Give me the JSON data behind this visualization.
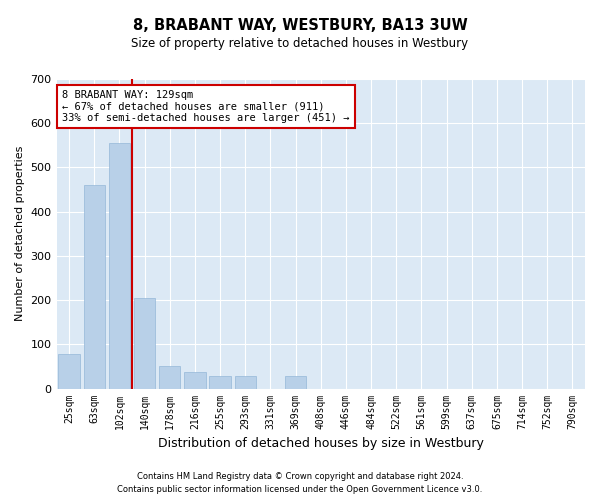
{
  "title": "8, BRABANT WAY, WESTBURY, BA13 3UW",
  "subtitle": "Size of property relative to detached houses in Westbury",
  "xlabel": "Distribution of detached houses by size in Westbury",
  "ylabel": "Number of detached properties",
  "categories": [
    "25sqm",
    "63sqm",
    "102sqm",
    "140sqm",
    "178sqm",
    "216sqm",
    "255sqm",
    "293sqm",
    "331sqm",
    "369sqm",
    "408sqm",
    "446sqm",
    "484sqm",
    "522sqm",
    "561sqm",
    "599sqm",
    "637sqm",
    "675sqm",
    "714sqm",
    "752sqm",
    "790sqm"
  ],
  "values": [
    78,
    460,
    555,
    205,
    50,
    38,
    28,
    28,
    0,
    28,
    0,
    0,
    0,
    0,
    0,
    0,
    0,
    0,
    0,
    0,
    0
  ],
  "bar_color": "#b8d0e8",
  "bar_edge_color": "#95b8d8",
  "background_color": "#dce9f5",
  "grid_color": "#ffffff",
  "marker_line_color": "#cc0000",
  "annotation_text": "8 BRABANT WAY: 129sqm\n← 67% of detached houses are smaller (911)\n33% of semi-detached houses are larger (451) →",
  "annotation_box_color": "#ffffff",
  "annotation_box_edge": "#cc0000",
  "ylim": [
    0,
    700
  ],
  "yticks": [
    0,
    100,
    200,
    300,
    400,
    500,
    600,
    700
  ],
  "footer_line1": "Contains HM Land Registry data © Crown copyright and database right 2024.",
  "footer_line2": "Contains public sector information licensed under the Open Government Licence v3.0."
}
